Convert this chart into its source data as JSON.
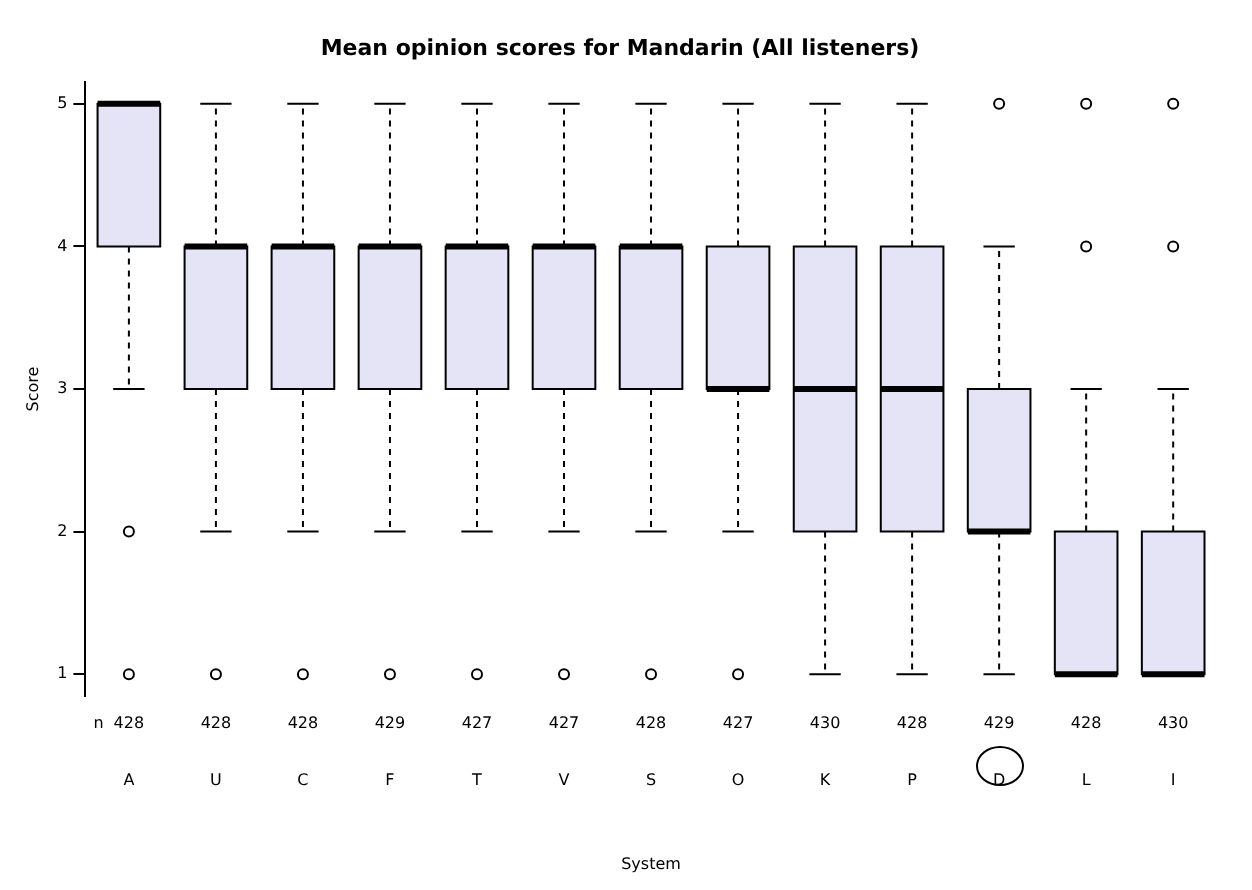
{
  "chart_data": {
    "type": "box",
    "title": "Mean opinion scores for Mandarin (All listeners)",
    "xlabel": "System",
    "ylabel": "Score",
    "categories": [
      "A",
      "U",
      "C",
      "F",
      "T",
      "V",
      "S",
      "O",
      "K",
      "P",
      "D",
      "L",
      "I"
    ],
    "color": "#e4e4f6",
    "boxes": [
      {
        "low": 3,
        "q1": 4,
        "median": 5,
        "q3": 5,
        "high": 5,
        "outliers": [
          2,
          1
        ]
      },
      {
        "low": 2,
        "q1": 3,
        "median": 4,
        "q3": 4,
        "high": 5,
        "outliers": [
          1
        ]
      },
      {
        "low": 2,
        "q1": 3,
        "median": 4,
        "q3": 4,
        "high": 5,
        "outliers": [
          1
        ]
      },
      {
        "low": 2,
        "q1": 3,
        "median": 4,
        "q3": 4,
        "high": 5,
        "outliers": [
          1
        ]
      },
      {
        "low": 2,
        "q1": 3,
        "median": 4,
        "q3": 4,
        "high": 5,
        "outliers": [
          1
        ]
      },
      {
        "low": 2,
        "q1": 3,
        "median": 4,
        "q3": 4,
        "high": 5,
        "outliers": [
          1
        ]
      },
      {
        "low": 2,
        "q1": 3,
        "median": 4,
        "q3": 4,
        "high": 5,
        "outliers": [
          1
        ]
      },
      {
        "low": 2,
        "q1": 3,
        "median": 3,
        "q3": 4,
        "high": 5,
        "outliers": [
          1
        ]
      },
      {
        "low": 1,
        "q1": 2,
        "median": 3,
        "q3": 4,
        "high": 5
      },
      {
        "low": 1,
        "q1": 2,
        "median": 3,
        "q3": 4,
        "high": 5
      },
      {
        "low": 1,
        "q1": 2,
        "median": 2,
        "q3": 3,
        "high": 4,
        "outliers": [
          5
        ]
      },
      {
        "low": 1,
        "q1": 1,
        "median": 1,
        "q3": 2,
        "high": 3,
        "outliers": [
          4,
          5
        ]
      },
      {
        "low": 1,
        "q1": 1,
        "median": 1,
        "q3": 2,
        "high": 3,
        "outliers": [
          4,
          5
        ]
      }
    ],
    "ylim": [
      0.85,
      5.15
    ],
    "yticks": [
      1,
      2,
      3,
      4,
      5
    ],
    "annotations": [
      "n",
      "428",
      "428",
      "428",
      "429",
      "427",
      "427",
      "428",
      "427",
      "430",
      "428",
      "429",
      "428",
      "430"
    ]
  }
}
